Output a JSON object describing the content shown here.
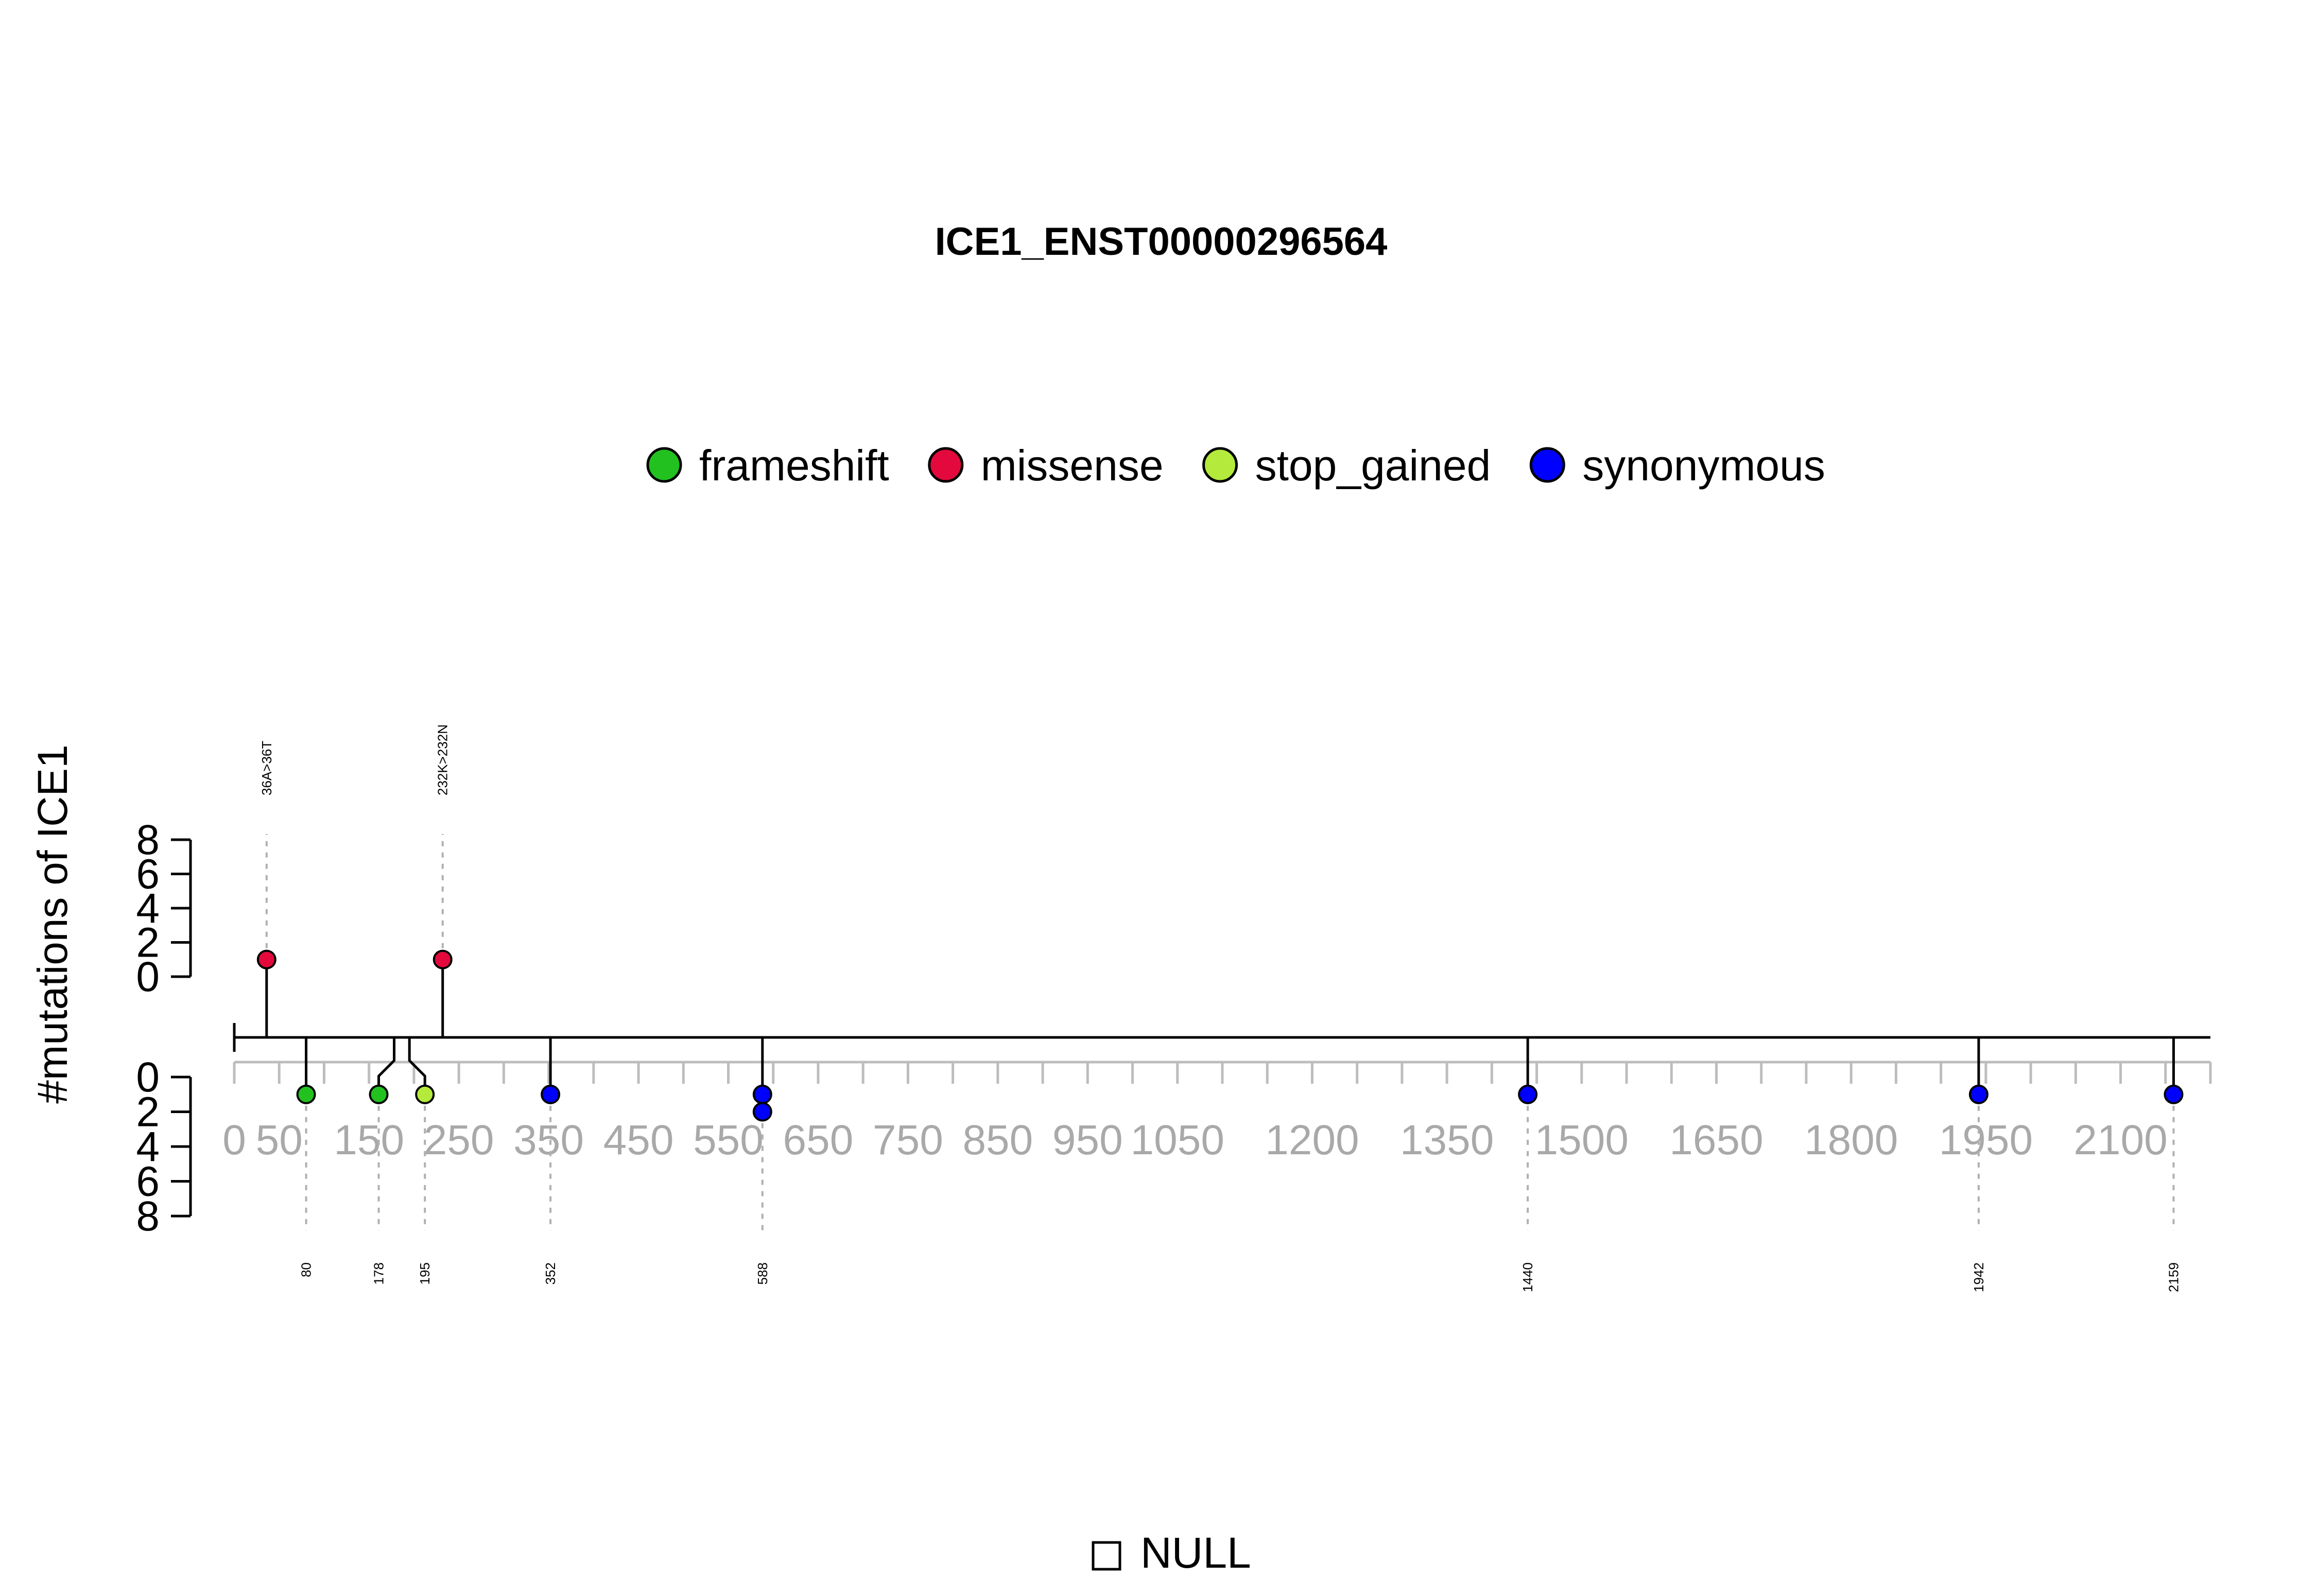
{
  "chart_data": {
    "type": "lollipop",
    "title": "ICE1_ENST00000296564",
    "ylabel": "#mutations of ICE1",
    "x_range": [
      0,
      2200
    ],
    "x_ticks": [
      0,
      50,
      150,
      250,
      350,
      450,
      550,
      650,
      750,
      850,
      950,
      1050,
      1200,
      1350,
      1500,
      1650,
      1800,
      1950,
      2100
    ],
    "y_ticks_upper": [
      0,
      2,
      4,
      6,
      8
    ],
    "y_ticks_lower": [
      0,
      2,
      4,
      6,
      8
    ],
    "legend": [
      {
        "label": "frameshift",
        "color": "#22c11f"
      },
      {
        "label": "missense",
        "color": "#e3093c"
      },
      {
        "label": "stop_gained",
        "color": "#b3ea3b"
      },
      {
        "label": "synonymous",
        "color": "#0000ff"
      }
    ],
    "upper_mutations": [
      {
        "position": 36,
        "count": 1,
        "type": "missense",
        "label": "36A>36T"
      },
      {
        "position": 232,
        "count": 1,
        "type": "missense",
        "label": "232K>232N"
      }
    ],
    "lower_mutations": [
      {
        "position": 80,
        "count": 1,
        "type": "frameshift",
        "label": "80"
      },
      {
        "position": 178,
        "count": 1,
        "type": "frameshift",
        "label": "178"
      },
      {
        "position": 195,
        "count": 1,
        "type": "stop_gained",
        "label": "195"
      },
      {
        "position": 352,
        "count": 1,
        "type": "synonymous",
        "label": "352"
      },
      {
        "position": 588,
        "count": 2,
        "type": "synonymous",
        "label": "588"
      },
      {
        "position": 1440,
        "count": 1,
        "type": "synonymous",
        "label": "1440"
      },
      {
        "position": 1942,
        "count": 1,
        "type": "synonymous",
        "label": "1942"
      },
      {
        "position": 2159,
        "count": 1,
        "type": "synonymous",
        "label": "2159"
      }
    ],
    "footer_legend": "NULL"
  }
}
